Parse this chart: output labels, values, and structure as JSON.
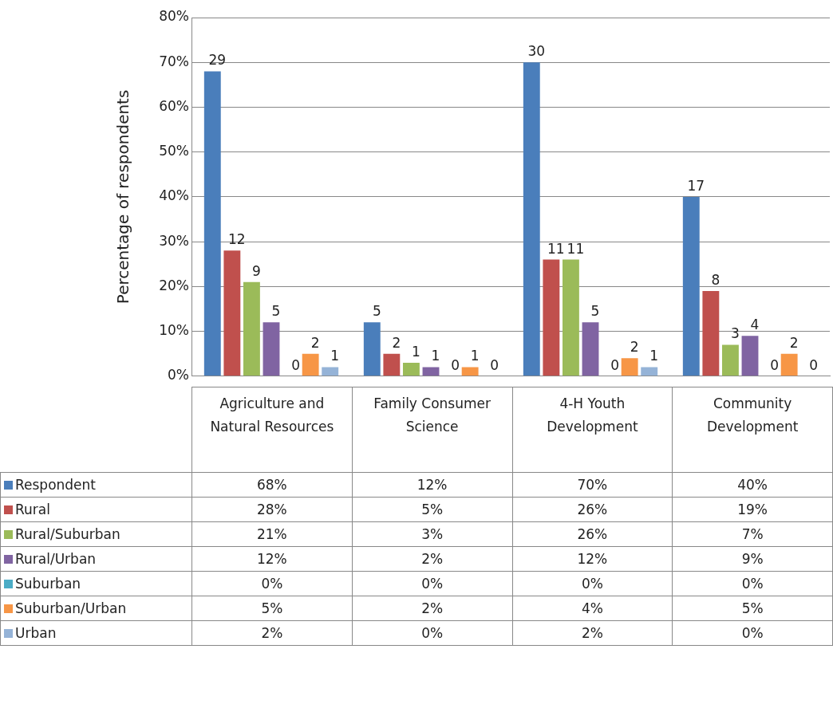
{
  "chart_data": {
    "type": "bar",
    "ylabel": "Percentage of respondents",
    "categories": [
      "Agriculture and Natural Resources",
      "Family Consumer Science",
      "4-H Youth Development",
      "Community Development"
    ],
    "series": [
      {
        "name": "Respondent",
        "color": "#4a7ebb",
        "values": [
          68,
          12,
          70,
          40
        ],
        "value_labels": [
          "68%",
          "12%",
          "70%",
          "40%"
        ]
      },
      {
        "name": "Rural",
        "color": "#c0504d",
        "values": [
          28,
          5,
          26,
          19
        ],
        "value_labels": [
          "28%",
          "5%",
          "26%",
          "19%"
        ]
      },
      {
        "name": "Rural/Suburban",
        "color": "#9bbb59",
        "values": [
          21,
          3,
          26,
          7
        ],
        "value_labels": [
          "21%",
          "3%",
          "26%",
          "7%"
        ]
      },
      {
        "name": "Rural/Urban",
        "color": "#8064a2",
        "values": [
          12,
          2,
          12,
          9
        ],
        "value_labels": [
          "12%",
          "2%",
          "12%",
          "9%"
        ]
      },
      {
        "name": "Suburban",
        "color": "#4bacc6",
        "values": [
          0,
          0,
          0,
          0
        ],
        "value_labels": [
          "0%",
          "0%",
          "0%",
          "0%"
        ]
      },
      {
        "name": "Suburban/Urban",
        "color": "#f79646",
        "values": [
          5,
          2,
          4,
          5
        ],
        "value_labels": [
          "5%",
          "2%",
          "4%",
          "5%"
        ]
      },
      {
        "name": "Urban",
        "color": "#95b3d7",
        "values": [
          2,
          0,
          2,
          0
        ],
        "value_labels": [
          "2%",
          "0%",
          "2%",
          "0%"
        ]
      }
    ],
    "ylim": [
      0,
      80
    ],
    "yticks": [
      {
        "value": 0,
        "label": "0%"
      },
      {
        "value": 10,
        "label": "10%"
      },
      {
        "value": 20,
        "label": "20%"
      },
      {
        "value": 30,
        "label": "30%"
      },
      {
        "value": 40,
        "label": "40%"
      },
      {
        "value": 50,
        "label": "50%"
      },
      {
        "value": 60,
        "label": "60%"
      },
      {
        "value": 70,
        "label": "70%"
      },
      {
        "value": 80,
        "label": "80%"
      }
    ],
    "grid": "y",
    "legend": "bottom",
    "tick_labels": "y",
    "annotations": [
      "29",
      "5",
      "30",
      "17",
      "12",
      "2",
      "11",
      "8",
      "9",
      "1",
      "11",
      "3",
      "5",
      "1",
      "5",
      "4",
      "0",
      "0",
      "0",
      "0",
      "2",
      "1",
      "2",
      "2",
      "1",
      "0",
      "1",
      "0"
    ]
  }
}
